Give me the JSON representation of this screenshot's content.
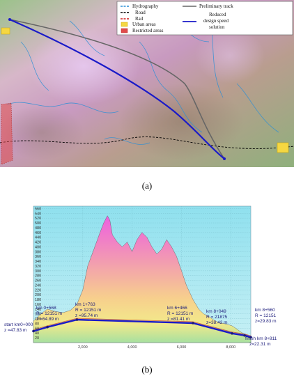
{
  "map_a": {
    "legend": {
      "hydrography": "Hydrography",
      "road": "Road",
      "rail": "Rail",
      "urban": "Urban areas",
      "restricted": "Restricted areas",
      "preliminary": "Preliminary track",
      "reduced_line1": "Reduced",
      "reduced_line2": "design speed",
      "reduced_line3": "solution"
    },
    "colors": {
      "hydrography": "#2a8fd6",
      "road": "#000000",
      "rail": "#d11a1a",
      "urban": "#f5d742",
      "restricted": "#e04a4a",
      "preliminary": "#666666",
      "reduced": "#1a1ac8"
    },
    "caption": "(a)"
  },
  "profile_b": {
    "caption": "(b)",
    "annotations": {
      "start": [
        "start  km0+000",
        "z =47.83 m"
      ],
      "a1": [
        "km 0+568",
        "R = 12151 m",
        "z =64.89 m"
      ],
      "a2": [
        "km 1+763",
        "R = 12151 m",
        "z =95.74 m"
      ],
      "a3": [
        "km 6+466",
        "R = 12151 m",
        "z =81.41 m"
      ],
      "a4": [
        "km 8+049",
        "R = 21875",
        "z=38.42 m"
      ],
      "a5": [
        "km 8+560",
        "R = 12151",
        "z=29.83 m"
      ],
      "finish": [
        "finish  km 8+811",
        "z=22.31 m"
      ]
    }
  },
  "chart_data": {
    "type": "area",
    "x_ticks": [
      "2,000",
      "4,000",
      "6,000",
      "8,000"
    ],
    "y_ticks": [
      "560",
      "540",
      "520",
      "500",
      "480",
      "460",
      "440",
      "420",
      "400",
      "380",
      "360",
      "340",
      "320",
      "300",
      "280",
      "260",
      "240",
      "220",
      "200",
      "180",
      "160",
      "140",
      "120",
      "100",
      "80",
      "60",
      "40",
      "20"
    ],
    "xlim": [
      0,
      8811
    ],
    "ylim": [
      0,
      570
    ],
    "series": [
      {
        "x": [
          0,
          300,
          568,
          900,
          1200,
          1500,
          1763,
          2000,
          2200,
          2450,
          2700,
          2850,
          3000,
          3100,
          3200,
          3400,
          3600,
          3800,
          4000,
          4200,
          4400,
          4600,
          4800,
          5000,
          5200,
          5400,
          5600,
          5800,
          6000,
          6200,
          6466,
          6700,
          6900,
          7100,
          7300,
          7500,
          7700,
          7900,
          8049,
          8200,
          8400,
          8560,
          8700,
          8811
        ],
        "values": [
          90,
          120,
          140,
          130,
          125,
          135,
          160,
          220,
          320,
          390,
          460,
          500,
          530,
          510,
          450,
          420,
          400,
          420,
          380,
          430,
          460,
          440,
          400,
          370,
          390,
          430,
          400,
          360,
          300,
          240,
          180,
          140,
          120,
          110,
          95,
          85,
          80,
          75,
          70,
          60,
          45,
          35,
          30,
          22
        ]
      },
      {
        "x": [
          0,
          568,
          1763,
          6466,
          8049,
          8560,
          8811
        ],
        "values": [
          47.83,
          64.89,
          95.74,
          81.41,
          38.42,
          29.83,
          22.31
        ]
      }
    ]
  }
}
